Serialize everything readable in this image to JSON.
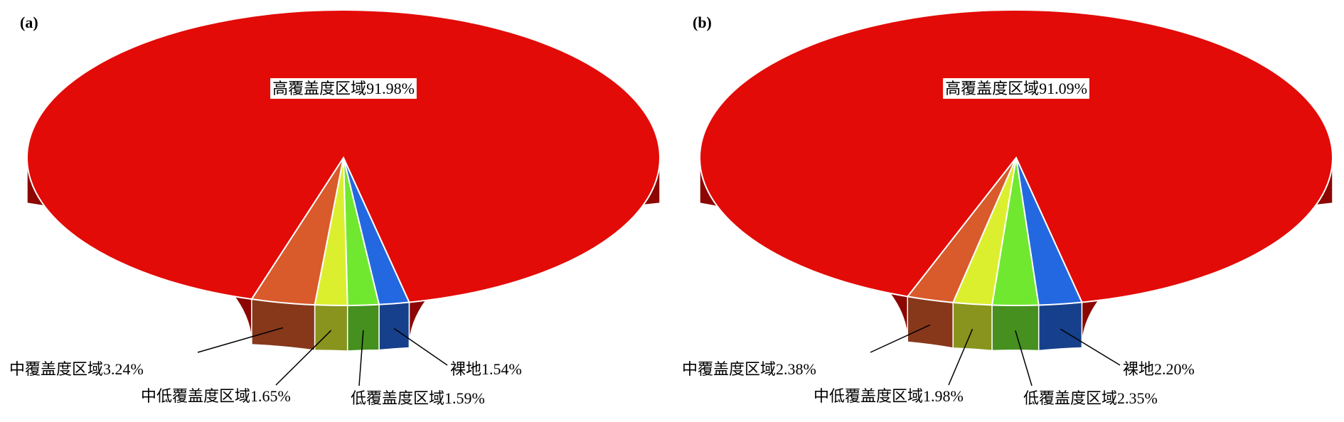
{
  "chart_data": [
    {
      "type": "pie",
      "title": "(a)",
      "categories": [
        "高覆盖度区域",
        "中覆盖度区域",
        "中低覆盖度区域",
        "低覆盖度区域",
        "裸地"
      ],
      "values": [
        91.98,
        3.24,
        1.65,
        1.59,
        1.54
      ],
      "value_labels": [
        "91.98%",
        "3.24%",
        "1.65%",
        "1.59%",
        "1.54%"
      ],
      "colors": [
        "#e20b07",
        "#d95a2b",
        "#dcef2f",
        "#70e830",
        "#2368e0"
      ]
    },
    {
      "type": "pie",
      "title": "(b)",
      "categories": [
        "高覆盖度区域",
        "中覆盖度区域",
        "中低覆盖度区域",
        "低覆盖度区域",
        "裸地"
      ],
      "values": [
        91.09,
        2.38,
        1.98,
        2.35,
        2.2
      ],
      "value_labels": [
        "91.09%",
        "2.38%",
        "1.98%",
        "2.35%",
        "2.20%"
      ],
      "colors": [
        "#e20b07",
        "#d95a2b",
        "#dcef2f",
        "#70e830",
        "#2368e0"
      ]
    }
  ]
}
